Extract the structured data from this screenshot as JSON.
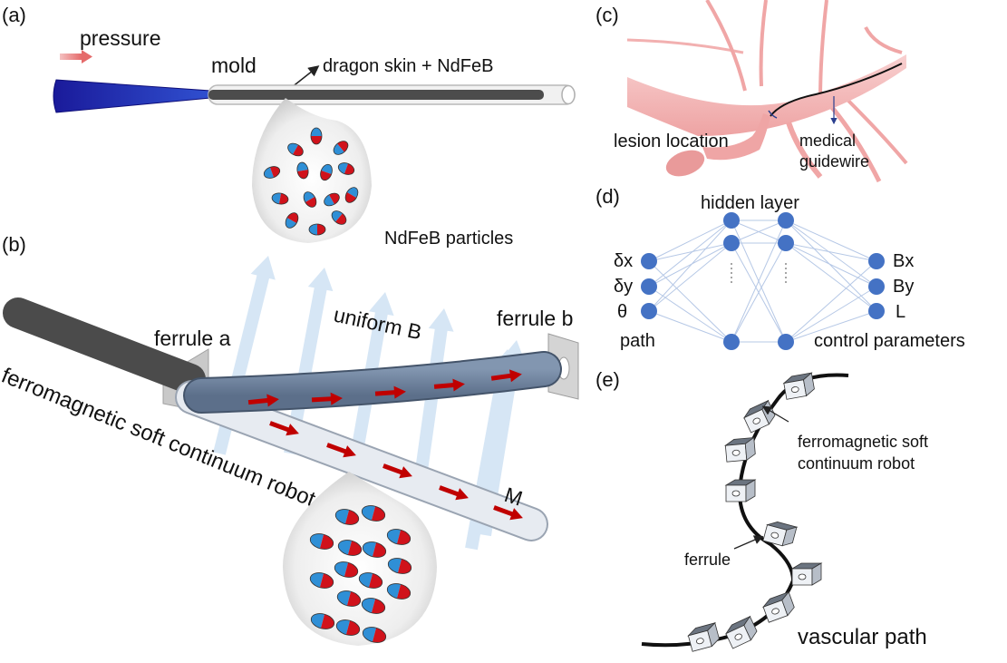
{
  "panels": {
    "a": {
      "tag": "(a)",
      "pressure": "pressure",
      "mold": "mold",
      "material": "dragon skin + NdFeB",
      "particles": "NdFeB particles"
    },
    "b": {
      "tag": "(b)",
      "ferrule_a": "ferrule a",
      "field": "uniform B",
      "ferrule_b": "ferrule b",
      "robot": "ferromagnetic soft continuum robot",
      "magnetization": "M"
    },
    "c": {
      "tag": "(c)",
      "lesion": "lesion location",
      "guidewire_line1": "medical",
      "guidewire_line2": "guidewire"
    },
    "d": {
      "tag": "(d)",
      "hidden": "hidden layer",
      "inputs": [
        "δx",
        "δy",
        "θ"
      ],
      "input_group": "path",
      "outputs": [
        "Bx",
        "By",
        "L"
      ],
      "output_group": "control parameters"
    },
    "e": {
      "tag": "(e)",
      "robot_line1": "ferromagnetic soft",
      "robot_line2": "continuum robot",
      "ferrule": "ferrule",
      "path": "vascular path"
    }
  },
  "colors": {
    "magnet_north": "#d0121b",
    "magnet_south": "#2f8fd6",
    "node": "#4472c4",
    "vessel": "#f2b8b8",
    "tip": "#1a1aa0",
    "field_arrow": "#d6e6f5"
  }
}
